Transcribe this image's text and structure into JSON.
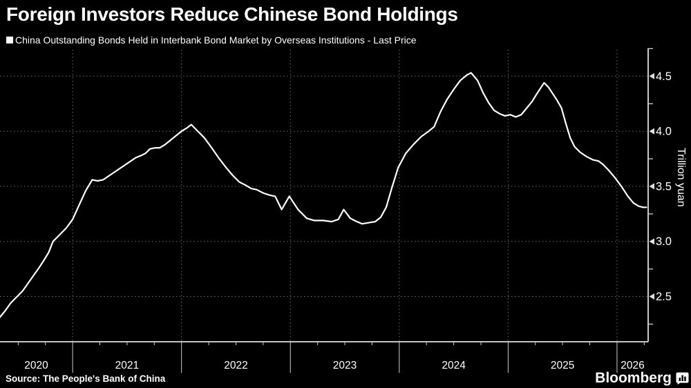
{
  "header": {
    "title": "Foreign Investors Reduce Chinese Bond Holdings"
  },
  "legend": {
    "label": "China Outstanding Bonds Held in Interbank Bond Market by Overseas Institutions - Last Price"
  },
  "footer": {
    "source": "Source: The People's Bank of China",
    "brand": "Bloomberg"
  },
  "colors": {
    "background": "#000000",
    "line": "#ffffff",
    "grid": "#6b6b6b",
    "axis": "#e0e0e0",
    "text": "#ffffff"
  },
  "chart_data": {
    "type": "line",
    "title": "China Outstanding Bonds Held in Interbank Bond Market by Overseas Institutions - Last Price",
    "xlabel": "",
    "ylabel": "Trillion yuan",
    "x_unit": "year (decimal)",
    "xlim": [
      2020.333,
      2026.286
    ],
    "ylim": [
      2.09,
      4.74
    ],
    "y_ticks": [
      2.5,
      3.0,
      3.5,
      4.0,
      4.5
    ],
    "y_minor_ticks": [
      2.25,
      2.75,
      3.25,
      3.75,
      4.25,
      4.75
    ],
    "x_year_labels": [
      "2020",
      "2021",
      "2022",
      "2023",
      "2024",
      "2025",
      "2026"
    ],
    "grid": true,
    "legend_position": "top-left",
    "series": [
      {
        "name": "China Outstanding Bonds Held in Interbank Bond Market by Overseas Institutions - Last Price",
        "points": [
          [
            2020.33,
            2.31
          ],
          [
            2020.38,
            2.37
          ],
          [
            2020.43,
            2.44
          ],
          [
            2020.49,
            2.5
          ],
          [
            2020.54,
            2.55
          ],
          [
            2020.59,
            2.62
          ],
          [
            2020.64,
            2.69
          ],
          [
            2020.69,
            2.76
          ],
          [
            2020.73,
            2.82
          ],
          [
            2020.78,
            2.9
          ],
          [
            2020.82,
            3.0
          ],
          [
            2020.86,
            3.04
          ],
          [
            2020.9,
            3.08
          ],
          [
            2020.94,
            3.12
          ],
          [
            2021.0,
            3.2
          ],
          [
            2021.05,
            3.31
          ],
          [
            2021.12,
            3.46
          ],
          [
            2021.18,
            3.56
          ],
          [
            2021.23,
            3.55
          ],
          [
            2021.28,
            3.56
          ],
          [
            2021.34,
            3.6
          ],
          [
            2021.4,
            3.64
          ],
          [
            2021.46,
            3.68
          ],
          [
            2021.52,
            3.72
          ],
          [
            2021.58,
            3.76
          ],
          [
            2021.63,
            3.78
          ],
          [
            2021.67,
            3.8
          ],
          [
            2021.71,
            3.84
          ],
          [
            2021.76,
            3.85
          ],
          [
            2021.8,
            3.85
          ],
          [
            2021.85,
            3.88
          ],
          [
            2021.9,
            3.92
          ],
          [
            2021.95,
            3.96
          ],
          [
            2022.0,
            4.0
          ],
          [
            2022.05,
            4.03
          ],
          [
            2022.09,
            4.06
          ],
          [
            2022.15,
            4.0
          ],
          [
            2022.21,
            3.94
          ],
          [
            2022.27,
            3.86
          ],
          [
            2022.34,
            3.76
          ],
          [
            2022.41,
            3.67
          ],
          [
            2022.47,
            3.6
          ],
          [
            2022.53,
            3.54
          ],
          [
            2022.59,
            3.51
          ],
          [
            2022.64,
            3.48
          ],
          [
            2022.69,
            3.47
          ],
          [
            2022.75,
            3.44
          ],
          [
            2022.81,
            3.42
          ],
          [
            2022.86,
            3.41
          ],
          [
            2022.92,
            3.29
          ],
          [
            2022.99,
            3.41
          ],
          [
            2023.07,
            3.29
          ],
          [
            2023.15,
            3.21
          ],
          [
            2023.22,
            3.19
          ],
          [
            2023.3,
            3.19
          ],
          [
            2023.38,
            3.18
          ],
          [
            2023.44,
            3.2
          ],
          [
            2023.49,
            3.29
          ],
          [
            2023.55,
            3.21
          ],
          [
            2023.61,
            3.18
          ],
          [
            2023.66,
            3.16
          ],
          [
            2023.72,
            3.17
          ],
          [
            2023.78,
            3.18
          ],
          [
            2023.83,
            3.22
          ],
          [
            2023.88,
            3.31
          ],
          [
            2023.93,
            3.48
          ],
          [
            2023.99,
            3.67
          ],
          [
            2024.06,
            3.8
          ],
          [
            2024.13,
            3.88
          ],
          [
            2024.2,
            3.95
          ],
          [
            2024.27,
            4.0
          ],
          [
            2024.32,
            4.04
          ],
          [
            2024.38,
            4.18
          ],
          [
            2024.44,
            4.29
          ],
          [
            2024.5,
            4.38
          ],
          [
            2024.56,
            4.46
          ],
          [
            2024.62,
            4.51
          ],
          [
            2024.66,
            4.53
          ],
          [
            2024.72,
            4.46
          ],
          [
            2024.77,
            4.35
          ],
          [
            2024.82,
            4.26
          ],
          [
            2024.87,
            4.19
          ],
          [
            2024.92,
            4.16
          ],
          [
            2024.97,
            4.14
          ],
          [
            2025.02,
            4.15
          ],
          [
            2025.07,
            4.13
          ],
          [
            2025.12,
            4.15
          ],
          [
            2025.17,
            4.21
          ],
          [
            2025.22,
            4.27
          ],
          [
            2025.27,
            4.35
          ],
          [
            2025.33,
            4.44
          ],
          [
            2025.37,
            4.4
          ],
          [
            2025.41,
            4.34
          ],
          [
            2025.45,
            4.28
          ],
          [
            2025.49,
            4.21
          ],
          [
            2025.53,
            4.07
          ],
          [
            2025.57,
            3.94
          ],
          [
            2025.61,
            3.86
          ],
          [
            2025.66,
            3.81
          ],
          [
            2025.72,
            3.77
          ],
          [
            2025.78,
            3.74
          ],
          [
            2025.83,
            3.73
          ],
          [
            2025.87,
            3.7
          ],
          [
            2025.92,
            3.65
          ],
          [
            2025.98,
            3.58
          ],
          [
            2026.04,
            3.5
          ],
          [
            2026.1,
            3.41
          ],
          [
            2026.15,
            3.35
          ],
          [
            2026.2,
            3.32
          ],
          [
            2026.24,
            3.31
          ],
          [
            2026.27,
            3.31
          ]
        ]
      }
    ]
  }
}
